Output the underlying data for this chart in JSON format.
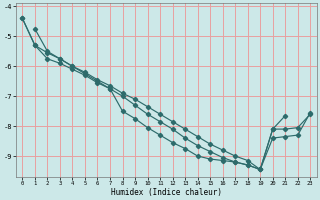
{
  "xlabel": "Humidex (Indice chaleur)",
  "background_color": "#cce8e8",
  "grid_color": "#e8a0a0",
  "line_color": "#2d6b6b",
  "xlim": [
    -0.5,
    23.5
  ],
  "ylim": [
    -9.7,
    -3.9
  ],
  "yticks": [
    -9,
    -8,
    -7,
    -6,
    -5,
    -4
  ],
  "xticks": [
    0,
    1,
    2,
    3,
    4,
    5,
    6,
    7,
    8,
    9,
    10,
    11,
    12,
    13,
    14,
    15,
    16,
    17,
    18,
    19,
    20,
    21,
    22,
    23
  ],
  "line1_x": [
    0,
    1,
    2,
    3,
    4,
    5,
    6,
    7,
    8,
    9,
    10,
    11,
    12,
    13,
    14,
    15,
    16,
    17,
    18,
    19,
    20,
    21,
    22,
    23
  ],
  "line1_y": [
    -4.4,
    -5.3,
    -5.75,
    -5.9,
    -6.1,
    -6.3,
    -6.55,
    -6.75,
    -7.5,
    -7.75,
    -8.05,
    -8.3,
    -8.55,
    -8.75,
    -9.0,
    -9.1,
    -9.15,
    -9.2,
    -9.3,
    -9.45,
    -8.1,
    -8.1,
    -8.05,
    -7.6
  ],
  "line2_x": [
    1,
    2,
    3,
    4,
    5,
    6,
    7,
    8,
    9,
    10,
    11,
    12,
    13,
    14,
    15,
    16,
    17,
    18,
    19,
    20,
    21,
    22,
    23
  ],
  "line2_y": [
    -4.75,
    -5.5,
    -5.75,
    -6.0,
    -6.25,
    -6.5,
    -6.75,
    -7.0,
    -7.3,
    -7.6,
    -7.85,
    -8.1,
    -8.4,
    -8.65,
    -8.85,
    -9.05,
    -9.2,
    -9.3,
    -9.45,
    -8.4,
    -8.35,
    -8.3,
    -7.55
  ],
  "line3_x": [
    0,
    1,
    2,
    3,
    4,
    5,
    6,
    7,
    8,
    9,
    10,
    11,
    12,
    13,
    14,
    15,
    16,
    17,
    18,
    19,
    20,
    21
  ],
  "line3_y": [
    -4.4,
    -5.3,
    -5.55,
    -5.75,
    -6.0,
    -6.2,
    -6.45,
    -6.65,
    -6.9,
    -7.1,
    -7.35,
    -7.6,
    -7.85,
    -8.1,
    -8.35,
    -8.6,
    -8.8,
    -9.0,
    -9.15,
    -9.45,
    -8.1,
    -7.65
  ]
}
